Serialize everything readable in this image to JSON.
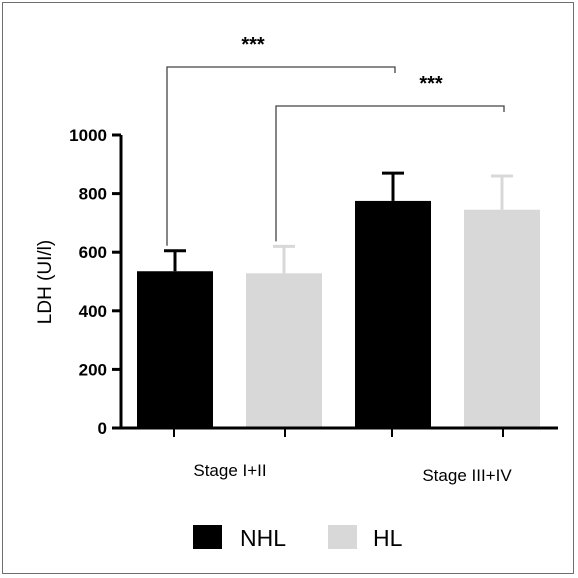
{
  "chart_data": {
    "type": "bar",
    "title": "",
    "xlabel": "",
    "ylabel": "LDH (UI/l)",
    "ylim": [
      0,
      1000
    ],
    "yticks": [
      0,
      200,
      400,
      600,
      800,
      1000
    ],
    "categories": [
      "Stage I+II",
      "Stage III+IV"
    ],
    "series": [
      {
        "name": "NHL",
        "values": [
          535,
          775
        ],
        "errors": [
          70,
          95
        ],
        "color": "#000000"
      },
      {
        "name": "HL",
        "values": [
          528,
          745
        ],
        "errors": [
          92,
          115
        ],
        "color": "#d8d8d8"
      }
    ],
    "significance": [
      {
        "label": "***",
        "from": "NHL Stage I+II",
        "to": "NHL Stage III+IV"
      },
      {
        "label": "***",
        "from": "HL Stage I+II",
        "to": "HL Stage III+IV"
      }
    ],
    "legend": {
      "placement": "bottom"
    },
    "grid": false
  }
}
